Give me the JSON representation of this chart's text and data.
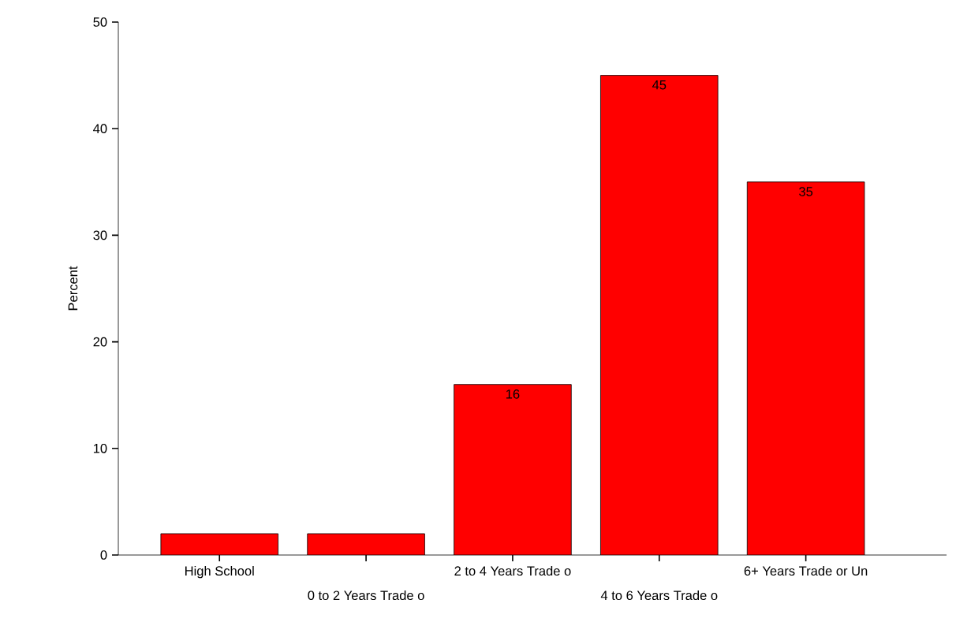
{
  "chart_data": {
    "type": "bar",
    "ylabel": "Percent",
    "categories": [
      "High School",
      "0 to 2 Years Trade o",
      "2 to 4 Years Trade o",
      "4 to 6 Years Trade o",
      "6+ Years Trade or Un"
    ],
    "values": [
      2,
      2,
      16,
      45,
      35
    ],
    "value_labels": [
      null,
      null,
      "16",
      "45",
      "35"
    ],
    "color": "#ff0000",
    "ylim": [
      0,
      50
    ],
    "yticks": [
      0,
      10,
      20,
      30,
      40,
      50
    ]
  }
}
